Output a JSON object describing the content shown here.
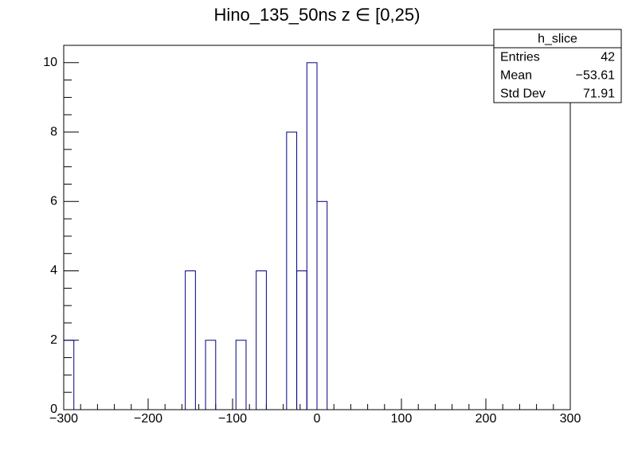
{
  "chart_data": {
    "type": "histogram",
    "title": "Hino_135_50ns z  ∈ [0,25)",
    "bins": [
      -300,
      -288,
      -276,
      -264,
      -252,
      -240,
      -228,
      -216,
      -204,
      -192,
      -180,
      -168,
      -156,
      -144,
      -132,
      -120,
      -108,
      -96,
      -84,
      -72,
      -60,
      -48,
      -36,
      -24,
      -12,
      0,
      12,
      24,
      36,
      48,
      60,
      72,
      84,
      96,
      108,
      120,
      132,
      144,
      156,
      168,
      180,
      192,
      204,
      216,
      228,
      240,
      252,
      264,
      276,
      288,
      300
    ],
    "values": [
      2,
      0,
      0,
      0,
      0,
      0,
      0,
      0,
      0,
      0,
      0,
      0,
      4,
      0,
      2,
      0,
      0,
      2,
      0,
      4,
      0,
      0,
      8,
      4,
      10,
      6,
      0,
      0,
      0,
      0,
      0,
      0,
      0,
      0,
      0,
      0,
      0,
      0,
      0,
      0,
      0,
      0,
      0,
      0,
      0,
      0,
      0,
      0,
      0,
      0
    ],
    "color": "#000080",
    "xlim": [
      -300,
      300
    ],
    "xticks": [
      {
        "value": -300,
        "label": "−300"
      },
      {
        "value": -200,
        "label": "−200"
      },
      {
        "value": -100,
        "label": "−100"
      },
      0,
      100,
      200,
      300
    ],
    "ylim": [
      0,
      10.5
    ],
    "yticks": [
      0,
      2,
      4,
      6,
      8,
      10
    ],
    "stats": {
      "title": "h_slice",
      "rows": [
        [
          "Entries",
          "42"
        ],
        [
          "Mean",
          "−53.61"
        ],
        [
          "Std Dev",
          "71.91"
        ]
      ]
    }
  }
}
